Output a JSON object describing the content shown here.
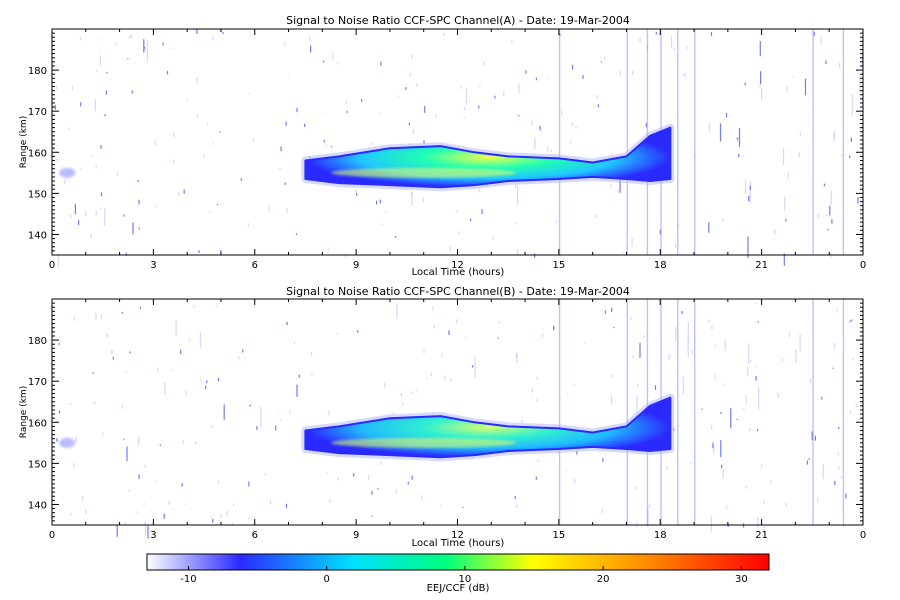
{
  "chart_data": [
    {
      "type": "heatmap",
      "title": "Signal to Noise Ratio CCF-SPC Channel(A) - Date: 19-Mar-2004",
      "xlabel": "Local Time (hours)",
      "ylabel": "Range (km)",
      "xlim": [
        0,
        24
      ],
      "ylim": [
        135,
        190
      ],
      "x_tick_values": [
        0,
        3,
        6,
        9,
        12,
        15,
        18,
        21,
        24
      ],
      "x_ticks": [
        "0",
        "3",
        "6",
        "9",
        "12",
        "15",
        "18",
        "21",
        "0"
      ],
      "y_ticks": [
        140,
        150,
        160,
        170,
        180
      ],
      "echo_region": {
        "x_start": 7.5,
        "x_end": 18.5,
        "peak_snr_db": 11,
        "center_range_km": 155,
        "profile": [
          {
            "x": 7.5,
            "lo": 153.5,
            "hi": 158
          },
          {
            "x": 8.5,
            "lo": 152.5,
            "hi": 159
          },
          {
            "x": 10.0,
            "lo": 152,
            "hi": 161
          },
          {
            "x": 11.5,
            "lo": 151.5,
            "hi": 161.5
          },
          {
            "x": 12.5,
            "lo": 152,
            "hi": 160
          },
          {
            "x": 13.5,
            "lo": 153,
            "hi": 159
          },
          {
            "x": 15.0,
            "lo": 153.5,
            "hi": 158.5
          },
          {
            "x": 16.0,
            "lo": 154,
            "hi": 157.5
          },
          {
            "x": 17.0,
            "lo": 153.5,
            "hi": 159
          },
          {
            "x": 17.7,
            "lo": 153,
            "hi": 164
          },
          {
            "x": 18.3,
            "lo": 153.5,
            "hi": 166
          }
        ]
      }
    },
    {
      "type": "heatmap",
      "title": "Signal to Noise Ratio CCF-SPC Channel(B) - Date: 19-Mar-2004",
      "xlabel": "Local Time (hours)",
      "ylabel": "Range (km)",
      "xlim": [
        0,
        24
      ],
      "ylim": [
        135,
        190
      ],
      "x_tick_values": [
        0,
        3,
        6,
        9,
        12,
        15,
        18,
        21,
        24
      ],
      "x_ticks": [
        "0",
        "3",
        "6",
        "9",
        "12",
        "15",
        "18",
        "21",
        "0"
      ],
      "y_ticks": [
        140,
        150,
        160,
        170,
        180
      ],
      "echo_region": {
        "x_start": 7.5,
        "x_end": 18.5,
        "peak_snr_db": 10,
        "center_range_km": 155,
        "profile": [
          {
            "x": 7.5,
            "lo": 153.5,
            "hi": 158
          },
          {
            "x": 8.5,
            "lo": 152.5,
            "hi": 159
          },
          {
            "x": 10.0,
            "lo": 152,
            "hi": 161
          },
          {
            "x": 11.5,
            "lo": 151.5,
            "hi": 161.5
          },
          {
            "x": 12.5,
            "lo": 152,
            "hi": 160
          },
          {
            "x": 13.5,
            "lo": 153,
            "hi": 159
          },
          {
            "x": 15.0,
            "lo": 153.5,
            "hi": 158.5
          },
          {
            "x": 16.0,
            "lo": 154,
            "hi": 157.5
          },
          {
            "x": 17.0,
            "lo": 153.5,
            "hi": 159
          },
          {
            "x": 17.7,
            "lo": 153,
            "hi": 164
          },
          {
            "x": 18.3,
            "lo": 153.5,
            "hi": 166
          }
        ]
      }
    }
  ],
  "colorbar": {
    "label": "EEJ/CCF (dB)",
    "range": [
      -13,
      32
    ],
    "tick_values": [
      -10,
      0,
      10,
      20,
      30
    ],
    "ticks": [
      "-10",
      "0",
      "10",
      "20",
      "30"
    ],
    "colormap": [
      "#ffffff",
      "#2a2aff",
      "#00e0ff",
      "#00ff80",
      "#ffff00",
      "#ff8000",
      "#ff0000"
    ]
  }
}
